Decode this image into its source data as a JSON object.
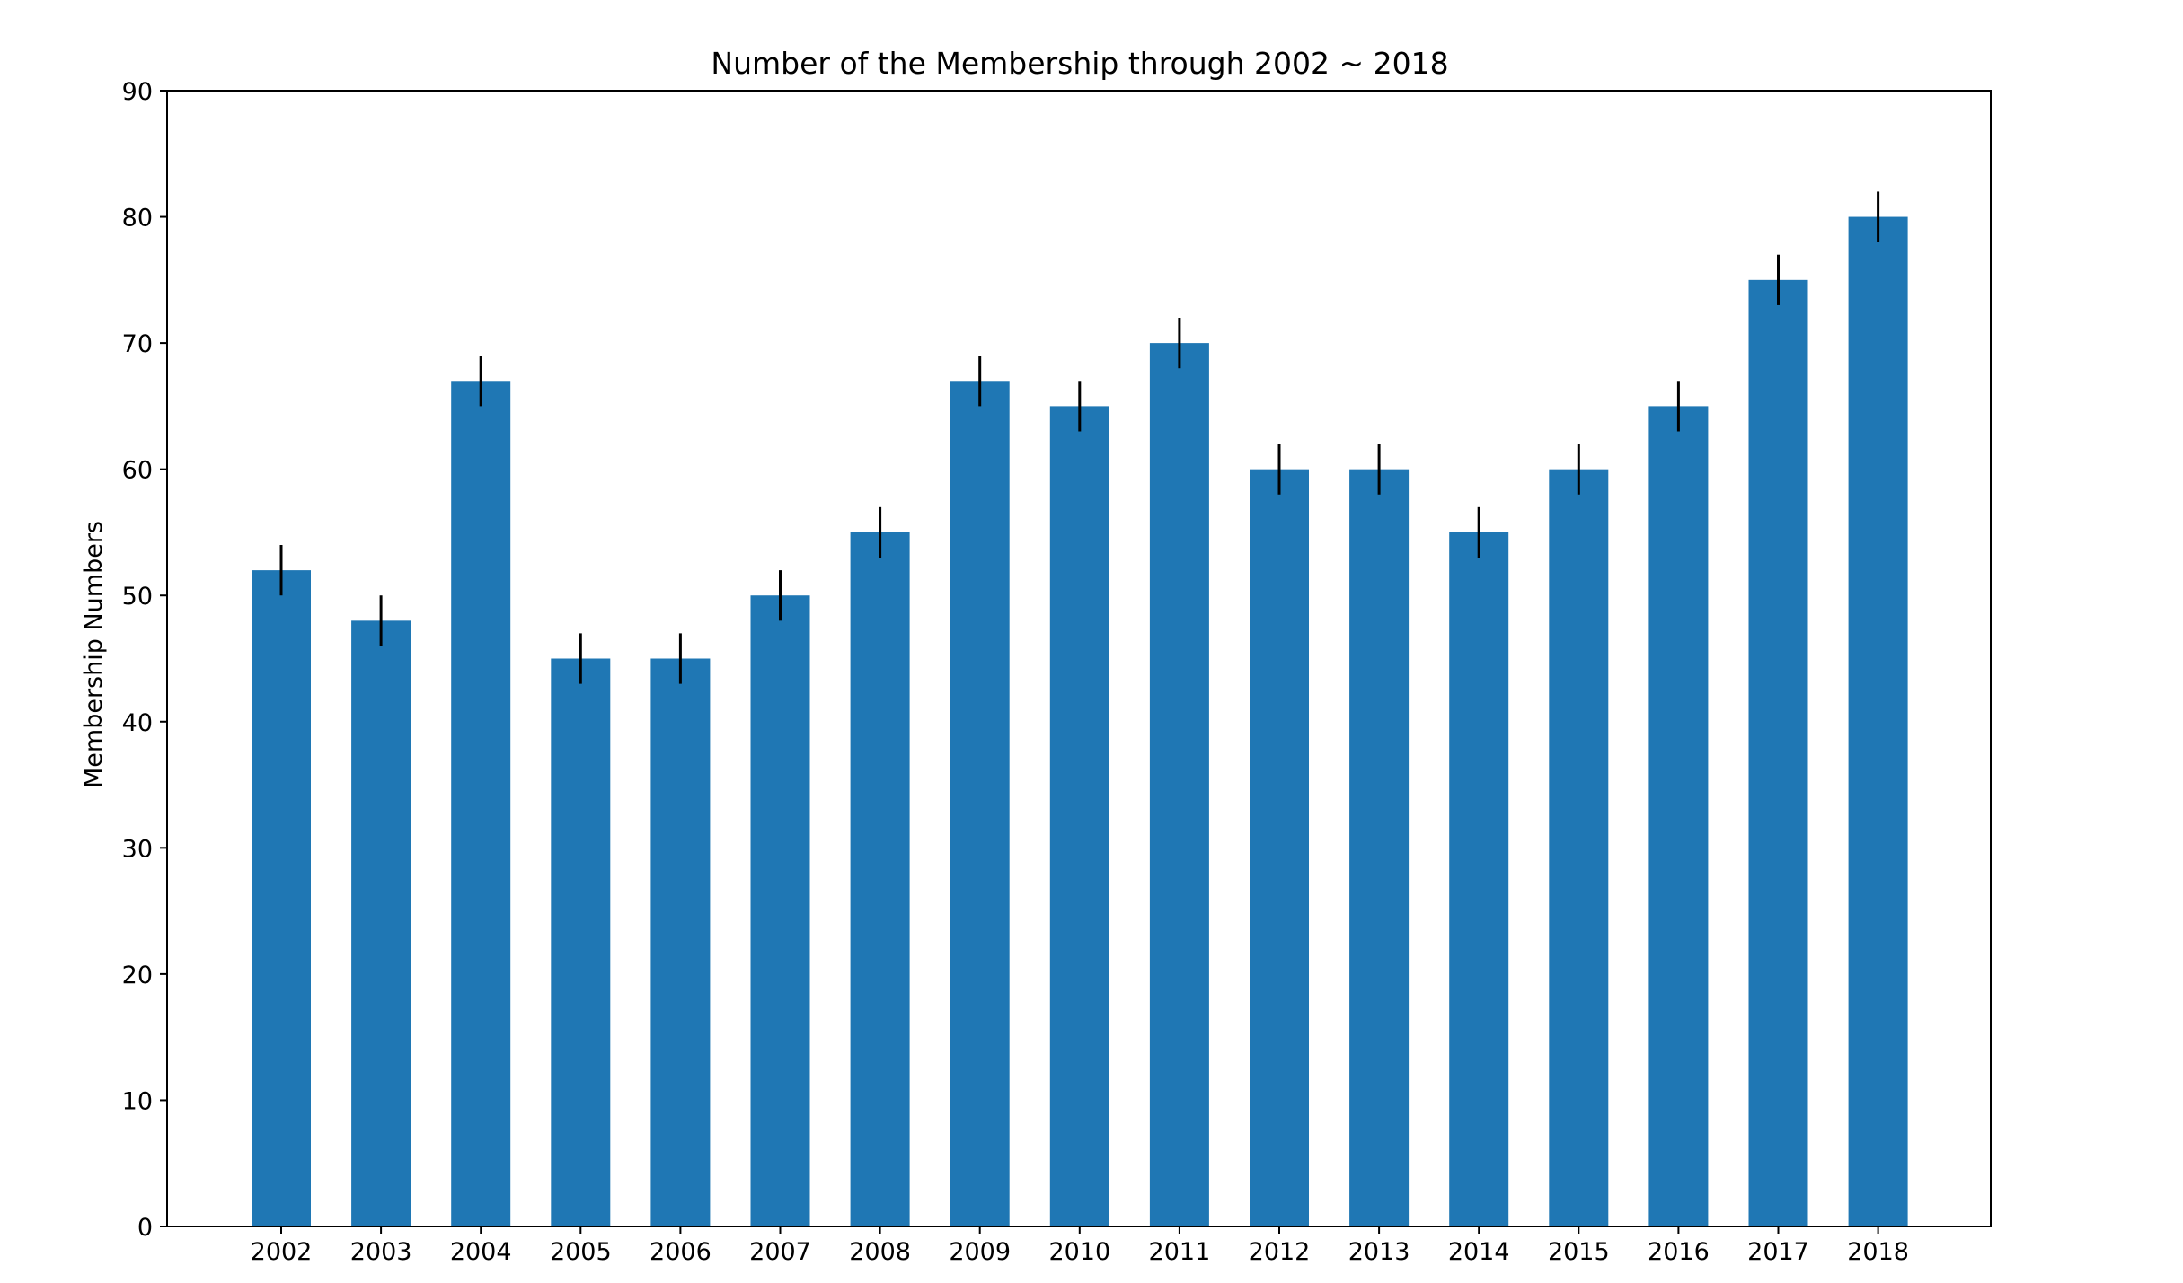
{
  "chart_data": {
    "type": "bar",
    "title": "Number of the Membership through 2002 ~ 2018",
    "xlabel": "",
    "ylabel": "Membership Numbers",
    "ylim": [
      0,
      90
    ],
    "yticks": [
      0,
      10,
      20,
      30,
      40,
      50,
      60,
      70,
      80,
      90
    ],
    "categories": [
      "2002",
      "2003",
      "2004",
      "2005",
      "2006",
      "2007",
      "2008",
      "2009",
      "2010",
      "2011",
      "2012",
      "2013",
      "2014",
      "2015",
      "2016",
      "2017",
      "2018"
    ],
    "values": [
      52,
      48,
      67,
      45,
      45,
      50,
      55,
      67,
      65,
      70,
      60,
      60,
      55,
      60,
      65,
      75,
      80
    ],
    "errors": [
      2,
      2,
      2,
      2,
      2,
      2,
      2,
      2,
      2,
      2,
      2,
      2,
      2,
      2,
      2,
      2,
      2
    ],
    "grid": false,
    "legend": "none",
    "colors": {
      "bar": "#1f77b4",
      "error": "#000000",
      "axis": "#000000"
    }
  }
}
